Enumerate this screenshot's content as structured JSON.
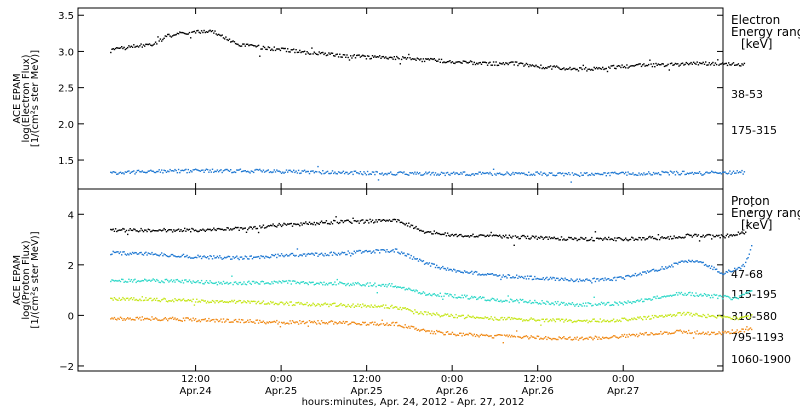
{
  "chart_data": [
    {
      "type": "scatter",
      "panel": "electron",
      "ylabel_lines": [
        "ACE EPAM",
        "log(Electron Flux)",
        "[1/(cm²s ster MeV)]"
      ],
      "ylim": [
        1.1,
        3.6
      ],
      "yticks": [
        1.5,
        2.0,
        2.5,
        3.0,
        3.5
      ],
      "ytick_labels": [
        "1.5",
        "2.0",
        "2.5",
        "3.0",
        "3.5"
      ],
      "legend": {
        "title_lines": [
          "Electron",
          "Energy range",
          "[keV]"
        ],
        "placement": "right"
      },
      "series": [
        {
          "name": "38-53",
          "color": "#000000",
          "points": [
            [
              0,
              3.02
            ],
            [
              3,
              3.08
            ],
            [
              6,
              3.1
            ],
            [
              8,
              3.22
            ],
            [
              10,
              3.26
            ],
            [
              12,
              3.28
            ],
            [
              14,
              3.3
            ],
            [
              16,
              3.2
            ],
            [
              18,
              3.1
            ],
            [
              20,
              3.08
            ],
            [
              22,
              3.05
            ],
            [
              24,
              3.04
            ],
            [
              27,
              3.0
            ],
            [
              30,
              2.97
            ],
            [
              33,
              2.95
            ],
            [
              36,
              2.93
            ],
            [
              39,
              2.93
            ],
            [
              42,
              2.9
            ],
            [
              45,
              2.89
            ],
            [
              48,
              2.87
            ],
            [
              51,
              2.85
            ],
            [
              54,
              2.84
            ],
            [
              57,
              2.84
            ],
            [
              60,
              2.8
            ],
            [
              63,
              2.78
            ],
            [
              66,
              2.76
            ],
            [
              69,
              2.78
            ],
            [
              72,
              2.8
            ],
            [
              75,
              2.82
            ],
            [
              78,
              2.82
            ],
            [
              81,
              2.84
            ],
            [
              84,
              2.84
            ],
            [
              87,
              2.83
            ],
            [
              89,
              2.83
            ]
          ]
        },
        {
          "name": "175-315",
          "color": "#1f78d2",
          "points": [
            [
              0,
              1.33
            ],
            [
              6,
              1.35
            ],
            [
              12,
              1.36
            ],
            [
              18,
              1.36
            ],
            [
              24,
              1.35
            ],
            [
              30,
              1.34
            ],
            [
              36,
              1.33
            ],
            [
              42,
              1.32
            ],
            [
              48,
              1.32
            ],
            [
              54,
              1.32
            ],
            [
              60,
              1.32
            ],
            [
              66,
              1.31
            ],
            [
              72,
              1.32
            ],
            [
              78,
              1.33
            ],
            [
              84,
              1.33
            ],
            [
              89,
              1.34
            ]
          ]
        }
      ]
    },
    {
      "type": "scatter",
      "panel": "proton",
      "ylabel_lines": [
        "ACE EPAM",
        "log(Proton Flux)",
        "[1/(cm²s ster MeV)]"
      ],
      "ylim": [
        -2.2,
        5.0
      ],
      "yticks": [
        -2,
        0,
        2,
        4
      ],
      "ytick_labels": [
        "−2",
        "0",
        "2",
        "4"
      ],
      "legend": {
        "title_lines": [
          "Proton",
          "Energy range",
          "[keV]"
        ],
        "placement": "right"
      },
      "series": [
        {
          "name": "47-68",
          "color": "#000000",
          "points": [
            [
              0,
              3.4
            ],
            [
              6,
              3.4
            ],
            [
              12,
              3.4
            ],
            [
              18,
              3.45
            ],
            [
              24,
              3.6
            ],
            [
              27,
              3.65
            ],
            [
              30,
              3.7
            ],
            [
              36,
              3.75
            ],
            [
              40,
              3.8
            ],
            [
              42,
              3.6
            ],
            [
              44,
              3.3
            ],
            [
              48,
              3.2
            ],
            [
              54,
              3.15
            ],
            [
              60,
              3.1
            ],
            [
              66,
              3.05
            ],
            [
              72,
              3.05
            ],
            [
              78,
              3.1
            ],
            [
              82,
              3.2
            ],
            [
              86,
              3.15
            ],
            [
              89,
              3.3
            ],
            [
              90,
              4.4
            ]
          ]
        },
        {
          "name": "115-195",
          "color": "#1f78d2",
          "points": [
            [
              0,
              2.5
            ],
            [
              6,
              2.45
            ],
            [
              12,
              2.35
            ],
            [
              18,
              2.3
            ],
            [
              24,
              2.4
            ],
            [
              30,
              2.45
            ],
            [
              36,
              2.55
            ],
            [
              40,
              2.6
            ],
            [
              44,
              2.1
            ],
            [
              48,
              1.8
            ],
            [
              54,
              1.6
            ],
            [
              60,
              1.5
            ],
            [
              66,
              1.4
            ],
            [
              72,
              1.5
            ],
            [
              76,
              1.8
            ],
            [
              80,
              2.1
            ],
            [
              82,
              2.2
            ],
            [
              86,
              1.7
            ],
            [
              89,
              2.0
            ],
            [
              90,
              2.8
            ]
          ]
        },
        {
          "name": "310-580",
          "color": "#2ed8c8",
          "points": [
            [
              0,
              1.4
            ],
            [
              6,
              1.4
            ],
            [
              12,
              1.35
            ],
            [
              18,
              1.3
            ],
            [
              24,
              1.35
            ],
            [
              30,
              1.3
            ],
            [
              36,
              1.25
            ],
            [
              40,
              1.2
            ],
            [
              44,
              0.9
            ],
            [
              48,
              0.8
            ],
            [
              54,
              0.65
            ],
            [
              60,
              0.55
            ],
            [
              66,
              0.45
            ],
            [
              72,
              0.5
            ],
            [
              76,
              0.7
            ],
            [
              80,
              0.9
            ],
            [
              84,
              0.8
            ],
            [
              88,
              0.7
            ],
            [
              90,
              1.0
            ]
          ]
        },
        {
          "name": "795-1193",
          "color": "#c6e61a",
          "points": [
            [
              0,
              0.7
            ],
            [
              6,
              0.65
            ],
            [
              12,
              0.6
            ],
            [
              18,
              0.55
            ],
            [
              24,
              0.5
            ],
            [
              30,
              0.45
            ],
            [
              36,
              0.4
            ],
            [
              40,
              0.35
            ],
            [
              44,
              0.1
            ],
            [
              48,
              0.0
            ],
            [
              54,
              -0.1
            ],
            [
              60,
              -0.15
            ],
            [
              66,
              -0.2
            ],
            [
              72,
              -0.15
            ],
            [
              76,
              -0.05
            ],
            [
              80,
              0.1
            ],
            [
              84,
              0.0
            ],
            [
              88,
              -0.1
            ],
            [
              90,
              0.0
            ]
          ]
        },
        {
          "name": "1060-1900",
          "color": "#f08a18",
          "points": [
            [
              0,
              -0.1
            ],
            [
              6,
              -0.1
            ],
            [
              12,
              -0.15
            ],
            [
              18,
              -0.2
            ],
            [
              24,
              -0.25
            ],
            [
              30,
              -0.25
            ],
            [
              36,
              -0.3
            ],
            [
              40,
              -0.3
            ],
            [
              44,
              -0.6
            ],
            [
              48,
              -0.7
            ],
            [
              54,
              -0.8
            ],
            [
              60,
              -0.85
            ],
            [
              66,
              -0.9
            ],
            [
              72,
              -0.8
            ],
            [
              76,
              -0.7
            ],
            [
              80,
              -0.6
            ],
            [
              84,
              -0.7
            ],
            [
              88,
              -0.6
            ],
            [
              90,
              -0.5
            ]
          ]
        }
      ]
    }
  ],
  "x_axis": {
    "ticks": [
      {
        "t": 12,
        "time": "12:00",
        "date": "Apr.24"
      },
      {
        "t": 24,
        "time": "0:00",
        "date": "Apr.25"
      },
      {
        "t": 36,
        "time": "12:00",
        "date": "Apr.25"
      },
      {
        "t": 48,
        "time": "0:00",
        "date": "Apr.26"
      },
      {
        "t": 60,
        "time": "12:00",
        "date": "Apr.26"
      },
      {
        "t": 72,
        "time": "0:00",
        "date": "Apr.27"
      }
    ],
    "xlim": [
      -4.5,
      86
    ],
    "xlabel": "hours:minutes, Apr. 24, 2012 - Apr. 27, 2012"
  }
}
